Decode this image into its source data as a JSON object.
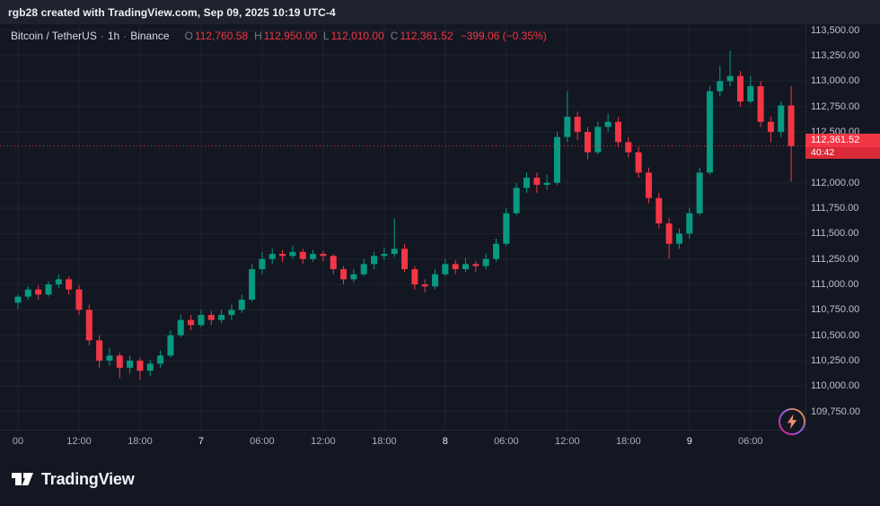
{
  "attribution": "rgb28 created with TradingView.com, Sep 09, 2025 10:19 UTC-4",
  "legend": {
    "symbol": "Bitcoin / TetherUS",
    "separator": "·",
    "interval": "1h",
    "exchange": "Binance",
    "ohlc": {
      "o_label": "O",
      "o": "112,760.58",
      "h_label": "H",
      "h": "112,950.00",
      "l_label": "L",
      "l": "112,010.00",
      "c_label": "C",
      "c": "112,361.52",
      "change": "−399.06 (−0.35%)"
    }
  },
  "price_axis": {
    "labels": [
      "113,500.00",
      "113,250.00",
      "113,000.00",
      "112,750.00",
      "112,500.00",
      "112,000.00",
      "111,750.00",
      "111,500.00",
      "111,250.00",
      "111,000.00",
      "110,750.00",
      "110,500.00",
      "110,250.00",
      "110,000.00",
      "109,750.00"
    ],
    "badge": {
      "price": "112,361.52",
      "countdown": "40:42"
    }
  },
  "time_axis": {
    "labels": [
      {
        "text": "00",
        "index": 0,
        "major": false
      },
      {
        "text": "12:00",
        "index": 6,
        "major": false
      },
      {
        "text": "18:00",
        "index": 12,
        "major": false
      },
      {
        "text": "7",
        "index": 18,
        "major": true
      },
      {
        "text": "06:00",
        "index": 24,
        "major": false
      },
      {
        "text": "12:00",
        "index": 30,
        "major": false
      },
      {
        "text": "18:00",
        "index": 36,
        "major": false
      },
      {
        "text": "8",
        "index": 42,
        "major": true
      },
      {
        "text": "06:00",
        "index": 48,
        "major": false
      },
      {
        "text": "12:00",
        "index": 54,
        "major": false
      },
      {
        "text": "18:00",
        "index": 60,
        "major": false
      },
      {
        "text": "9",
        "index": 66,
        "major": true
      },
      {
        "text": "06:00",
        "index": 72,
        "major": false
      }
    ]
  },
  "footer": {
    "brand": "TradingView"
  },
  "colors": {
    "up": "#089981",
    "down": "#F23645",
    "background": "#131722",
    "top_strip": "#1E222D",
    "grid": "rgba(244,247,255,0.055)",
    "axis_text": "#BCC1CE",
    "badge": "#F23645"
  },
  "chart_data": {
    "type": "candlestick",
    "symbol": "Bitcoin / TetherUS",
    "interval": "1h",
    "exchange": "Binance",
    "title": "Bitcoin / TetherUS · 1h · Binance",
    "y_axis": {
      "min": 109750,
      "max": 113500,
      "step": 250
    },
    "x_axis_days": [
      "7",
      "8",
      "9"
    ],
    "current_price": 112361.52,
    "countdown": "40:42",
    "last": {
      "open": 112760.58,
      "high": 112950.0,
      "low": 112010.0,
      "close": 112361.52,
      "change": -399.06,
      "change_pct": -0.35
    },
    "candles": [
      [
        110820,
        110900,
        110760,
        110880
      ],
      [
        110880,
        110980,
        110850,
        110950
      ],
      [
        110950,
        110990,
        110850,
        110900
      ],
      [
        110900,
        111030,
        110880,
        111000
      ],
      [
        111000,
        111100,
        110960,
        111050
      ],
      [
        111050,
        111080,
        110900,
        110950
      ],
      [
        110950,
        110990,
        110700,
        110750
      ],
      [
        110750,
        110800,
        110400,
        110450
      ],
      [
        110450,
        110500,
        110180,
        110250
      ],
      [
        110250,
        110380,
        110200,
        110300
      ],
      [
        110300,
        110330,
        110080,
        110180
      ],
      [
        110180,
        110300,
        110120,
        110250
      ],
      [
        110250,
        110280,
        110060,
        110150
      ],
      [
        110150,
        110260,
        110100,
        110220
      ],
      [
        110220,
        110350,
        110180,
        110300
      ],
      [
        110300,
        110550,
        110280,
        110500
      ],
      [
        110500,
        110700,
        110480,
        110650
      ],
      [
        110650,
        110700,
        110550,
        110600
      ],
      [
        110600,
        110750,
        110580,
        110700
      ],
      [
        110700,
        110740,
        110600,
        110650
      ],
      [
        110650,
        110750,
        110620,
        110700
      ],
      [
        110700,
        110800,
        110650,
        110750
      ],
      [
        110750,
        110900,
        110720,
        110850
      ],
      [
        110850,
        111200,
        110830,
        111150
      ],
      [
        111150,
        111320,
        111100,
        111250
      ],
      [
        111250,
        111350,
        111200,
        111300
      ],
      [
        111300,
        111340,
        111220,
        111280
      ],
      [
        111280,
        111380,
        111250,
        111320
      ],
      [
        111320,
        111350,
        111200,
        111250
      ],
      [
        111250,
        111340,
        111220,
        111300
      ],
      [
        111300,
        111330,
        111230,
        111280
      ],
      [
        111280,
        111300,
        111100,
        111150
      ],
      [
        111150,
        111180,
        111000,
        111050
      ],
      [
        111050,
        111150,
        111020,
        111100
      ],
      [
        111100,
        111250,
        111080,
        111200
      ],
      [
        111200,
        111320,
        111150,
        111280
      ],
      [
        111280,
        111360,
        111240,
        111300
      ],
      [
        111300,
        111650,
        111270,
        111350
      ],
      [
        111350,
        111400,
        111120,
        111150
      ],
      [
        111150,
        111180,
        110950,
        111000
      ],
      [
        111000,
        111050,
        110920,
        110980
      ],
      [
        110980,
        111150,
        110950,
        111100
      ],
      [
        111100,
        111250,
        111080,
        111200
      ],
      [
        111200,
        111240,
        111100,
        111150
      ],
      [
        111150,
        111260,
        111120,
        111200
      ],
      [
        111200,
        111230,
        111120,
        111180
      ],
      [
        111180,
        111300,
        111150,
        111250
      ],
      [
        111250,
        111450,
        111220,
        111400
      ],
      [
        111400,
        111750,
        111380,
        111700
      ],
      [
        111700,
        112000,
        111680,
        111950
      ],
      [
        111950,
        112100,
        111900,
        112050
      ],
      [
        112050,
        112100,
        111900,
        111980
      ],
      [
        111980,
        112080,
        111930,
        112000
      ],
      [
        112000,
        112500,
        111980,
        112450
      ],
      [
        112450,
        112900,
        112400,
        112650
      ],
      [
        112650,
        112700,
        112420,
        112500
      ],
      [
        112500,
        112550,
        112230,
        112300
      ],
      [
        112300,
        112600,
        112280,
        112550
      ],
      [
        112550,
        112680,
        112500,
        112600
      ],
      [
        112600,
        112650,
        112350,
        112400
      ],
      [
        112400,
        112450,
        112250,
        112300
      ],
      [
        112300,
        112350,
        112050,
        112100
      ],
      [
        112100,
        112150,
        111800,
        111850
      ],
      [
        111850,
        111900,
        111550,
        111600
      ],
      [
        111600,
        111650,
        111250,
        111400
      ],
      [
        111400,
        111550,
        111350,
        111500
      ],
      [
        111500,
        111750,
        111450,
        111700
      ],
      [
        111700,
        112150,
        111680,
        112100
      ],
      [
        112100,
        112950,
        112080,
        112900
      ],
      [
        112900,
        113150,
        112850,
        113000
      ],
      [
        113000,
        113300,
        112950,
        113050
      ],
      [
        113050,
        113100,
        112750,
        112800
      ],
      [
        112800,
        113050,
        112780,
        112950
      ],
      [
        112950,
        113000,
        112550,
        112600
      ],
      [
        112600,
        112650,
        112400,
        112500
      ],
      [
        112500,
        112800,
        112450,
        112760.58
      ],
      [
        112760.58,
        112950,
        112010,
        112361.52
      ]
    ]
  }
}
